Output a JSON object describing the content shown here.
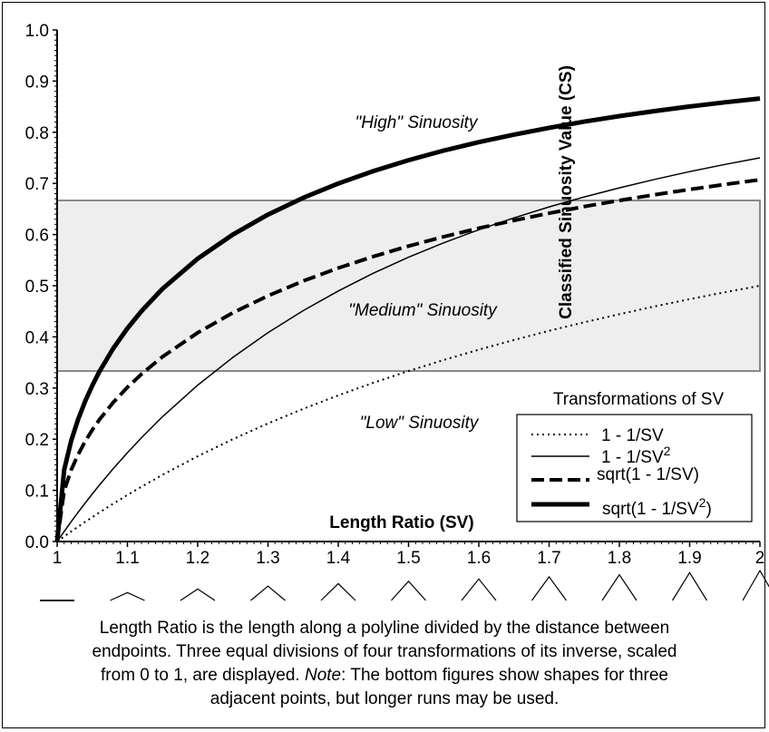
{
  "chart_data": {
    "type": "line",
    "xlim": [
      1,
      2
    ],
    "ylim": [
      0,
      1
    ],
    "xticks": [
      "1",
      "1.1",
      "1.2",
      "1.3",
      "1.4",
      "1.5",
      "1.6",
      "1.7",
      "1.8",
      "1.9",
      "2"
    ],
    "yticks": [
      "0.0",
      "0.1",
      "0.2",
      "0.3",
      "0.4",
      "0.5",
      "0.6",
      "0.7",
      "0.8",
      "0.9",
      "1.0"
    ],
    "xlabel": "Length Ratio (SV)",
    "ylabel": "Classified Sinuosity Value (CS)",
    "grid": false,
    "band": {
      "from": 0.3333,
      "to": 0.6667,
      "color": "#eeeeee"
    },
    "region_labels": {
      "high": "\"High\" Sinuosity",
      "medium": "\"Medium\" Sinuosity",
      "low": "\"Low\" Sinuosity"
    },
    "legend": {
      "title": "Transformations of SV",
      "position": "bottom-right",
      "items": [
        {
          "text": "1 - 1/SV",
          "sup": "",
          "after": "",
          "style": "dotted"
        },
        {
          "text": "1 - 1/SV",
          "sup": "2",
          "after": "",
          "style": "thin"
        },
        {
          "text": "sqrt(1 - 1/SV)",
          "sup": "",
          "after": "",
          "style": "dashed"
        },
        {
          "text": "sqrt(1 - 1/SV",
          "sup": "2",
          "after": ")",
          "style": "thick"
        }
      ]
    },
    "x": [
      1,
      1.01,
      1.02,
      1.03,
      1.04,
      1.05,
      1.06,
      1.08,
      1.1,
      1.12,
      1.15,
      1.2,
      1.25,
      1.3,
      1.35,
      1.4,
      1.45,
      1.5,
      1.55,
      1.6,
      1.65,
      1.7,
      1.75,
      1.8,
      1.85,
      1.9,
      1.95,
      2
    ],
    "series": [
      {
        "style": "dotted",
        "values": [
          0,
          0.0099,
          0.0196,
          0.0291,
          0.0385,
          0.0476,
          0.0566,
          0.0741,
          0.0909,
          0.1071,
          0.1304,
          0.1667,
          0.2,
          0.2308,
          0.2593,
          0.2857,
          0.3103,
          0.3333,
          0.3548,
          0.375,
          0.3939,
          0.4118,
          0.4286,
          0.4444,
          0.4595,
          0.4737,
          0.4872,
          0.5
        ]
      },
      {
        "style": "thin",
        "values": [
          0,
          0.0197,
          0.0388,
          0.0574,
          0.0754,
          0.093,
          0.11,
          0.1427,
          0.1736,
          0.2028,
          0.2439,
          0.3056,
          0.36,
          0.4083,
          0.4513,
          0.4898,
          0.5244,
          0.5556,
          0.5838,
          0.6094,
          0.6327,
          0.654,
          0.6735,
          0.6914,
          0.7078,
          0.723,
          0.737,
          0.75
        ]
      },
      {
        "style": "dashed",
        "values": [
          0,
          0.0995,
          0.14,
          0.1706,
          0.1961,
          0.2182,
          0.2379,
          0.2722,
          0.3015,
          0.3273,
          0.3612,
          0.4082,
          0.4472,
          0.4804,
          0.5092,
          0.5345,
          0.5571,
          0.5774,
          0.5957,
          0.6124,
          0.6276,
          0.6417,
          0.6547,
          0.6667,
          0.6779,
          0.6882,
          0.698,
          0.7071
        ]
      },
      {
        "style": "thick",
        "values": [
          0,
          0.1404,
          0.197,
          0.2396,
          0.2746,
          0.3049,
          0.3317,
          0.3778,
          0.4166,
          0.4503,
          0.4939,
          0.5528,
          0.6,
          0.639,
          0.6718,
          0.6999,
          0.7242,
          0.7454,
          0.7641,
          0.7806,
          0.7954,
          0.8087,
          0.8207,
          0.8315,
          0.8413,
          0.8503,
          0.8585,
          0.866
        ]
      }
    ],
    "shapes_row": [
      1,
      1.1,
      1.2,
      1.3,
      1.4,
      1.5,
      1.6,
      1.7,
      1.8,
      1.9,
      2
    ]
  },
  "caption": {
    "line1": "Length Ratio is the length along a polyline divided by the distance between",
    "line2": "endpoints. Three equal divisions of four transformations of its inverse, scaled",
    "line3_a": "from 0 to 1, are displayed. ",
    "line3_note": "Note",
    "line3_b": ": The bottom figures show shapes for three",
    "line4": "adjacent points, but longer runs may be used."
  }
}
